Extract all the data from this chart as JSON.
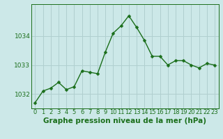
{
  "x": [
    0,
    1,
    2,
    3,
    4,
    5,
    6,
    7,
    8,
    9,
    10,
    11,
    12,
    13,
    14,
    15,
    16,
    17,
    18,
    19,
    20,
    21,
    22,
    23
  ],
  "y": [
    1031.7,
    1032.1,
    1032.2,
    1032.4,
    1032.15,
    1032.25,
    1032.8,
    1032.75,
    1032.7,
    1033.45,
    1034.1,
    1034.35,
    1034.7,
    1034.3,
    1033.85,
    1033.3,
    1033.3,
    1033.0,
    1033.15,
    1033.15,
    1033.0,
    1032.9,
    1033.05,
    1033.0
  ],
  "line_color": "#1a6e1a",
  "marker_color": "#1a6e1a",
  "bg_color": "#cce8e8",
  "grid_color": "#b0cfcf",
  "title": "Graphe pression niveau de la mer (hPa)",
  "title_color": "#1a6e1a",
  "ylim": [
    1031.5,
    1035.1
  ],
  "yticks": [
    1032,
    1033,
    1034
  ],
  "xtick_labels": [
    "0",
    "1",
    "2",
    "3",
    "4",
    "5",
    "6",
    "7",
    "8",
    "9",
    "10",
    "11",
    "12",
    "13",
    "14",
    "15",
    "16",
    "17",
    "18",
    "19",
    "20",
    "21",
    "22",
    "23"
  ],
  "title_fontsize": 7.5,
  "tick_fontsize": 6.5,
  "marker_size": 2.5,
  "line_width": 1.0
}
